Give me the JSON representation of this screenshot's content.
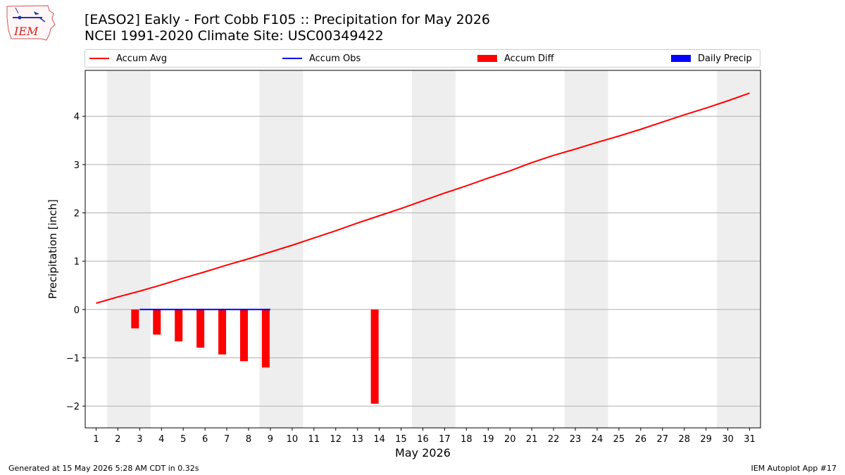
{
  "header": {
    "title_line1": "[EASO2] Eakly - Fort Cobb F105 :: Precipitation for May 2026",
    "title_line2": "NCEI 1991-2020 Climate Site: USC00349422",
    "logo_text": "IEM"
  },
  "footer": {
    "generated": "Generated at 15 May 2026 5:28 AM CDT in 0.32s",
    "app": "IEM Autoplot App #17"
  },
  "colors": {
    "accum_avg": "#ff0000",
    "accum_obs": "#0000ff",
    "accum_diff": "#ff0000",
    "daily_precip": "#0000ff",
    "weekend_shade": "#eeeeee",
    "grid": "#b0b0b0"
  },
  "chart_data": {
    "type": "line",
    "title": "[EASO2] Eakly - Fort Cobb F105 :: Precipitation for May 2026",
    "subtitle": "NCEI 1991-2020 Climate Site: USC00349422",
    "xlabel": "May 2026",
    "ylabel": "Precipitation [inch]",
    "xlim": [
      0.5,
      31.5
    ],
    "ylim": [
      -2.45,
      4.95
    ],
    "yticks": [
      -2,
      -1,
      0,
      1,
      2,
      3,
      4
    ],
    "y_tick_labels": [
      "−2",
      "−1",
      "0",
      "1",
      "2",
      "3",
      "4"
    ],
    "x": [
      1,
      2,
      3,
      4,
      5,
      6,
      7,
      8,
      9,
      10,
      11,
      12,
      13,
      14,
      15,
      16,
      17,
      18,
      19,
      20,
      21,
      22,
      23,
      24,
      25,
      26,
      27,
      28,
      29,
      30,
      31
    ],
    "x_tick_labels": [
      "1",
      "2",
      "3",
      "4",
      "5",
      "6",
      "7",
      "8",
      "9",
      "10",
      "11",
      "12",
      "13",
      "14",
      "15",
      "16",
      "17",
      "18",
      "19",
      "20",
      "21",
      "22",
      "23",
      "24",
      "25",
      "26",
      "27",
      "28",
      "29",
      "30",
      "31"
    ],
    "grid": "horizontal",
    "legend_position": "top",
    "shaded_days": [
      [
        2,
        3
      ],
      [
        9,
        10
      ],
      [
        16,
        17
      ],
      [
        23,
        24
      ],
      [
        30,
        31
      ]
    ],
    "legend": [
      {
        "label": "Accum Avg",
        "kind": "line",
        "color": "#ff0000"
      },
      {
        "label": "Accum Obs",
        "kind": "line",
        "color": "#0000ff"
      },
      {
        "label": "Accum Diff",
        "kind": "bar",
        "color": "#ff0000"
      },
      {
        "label": "Daily Precip",
        "kind": "bar",
        "color": "#0000ff"
      }
    ],
    "series": [
      {
        "name": "Accum Avg",
        "type": "line",
        "color": "#ff0000",
        "x": [
          1,
          2,
          3,
          4,
          5,
          6,
          7,
          8,
          9,
          10,
          11,
          12,
          13,
          14,
          15,
          16,
          17,
          18,
          19,
          20,
          21,
          22,
          23,
          24,
          25,
          26,
          27,
          28,
          29,
          30,
          31
        ],
        "values": [
          0.13,
          0.26,
          0.38,
          0.51,
          0.65,
          0.78,
          0.92,
          1.05,
          1.19,
          1.33,
          1.48,
          1.63,
          1.79,
          1.94,
          2.09,
          2.25,
          2.41,
          2.56,
          2.72,
          2.87,
          3.04,
          3.19,
          3.32,
          3.46,
          3.59,
          3.73,
          3.88,
          4.03,
          4.17,
          4.32,
          4.48
        ]
      },
      {
        "name": "Accum Obs",
        "type": "line",
        "color": "#0000ff",
        "x": [
          3,
          4,
          5,
          6,
          7,
          8,
          9
        ],
        "values": [
          0,
          0,
          0,
          0,
          0,
          0,
          0
        ]
      },
      {
        "name": "Accum Diff",
        "type": "bar",
        "color": "#ff0000",
        "x": [
          3,
          4,
          5,
          6,
          7,
          8,
          9,
          14
        ],
        "values": [
          -0.39,
          -0.52,
          -0.66,
          -0.79,
          -0.93,
          -1.07,
          -1.2,
          -1.95
        ]
      }
    ]
  }
}
